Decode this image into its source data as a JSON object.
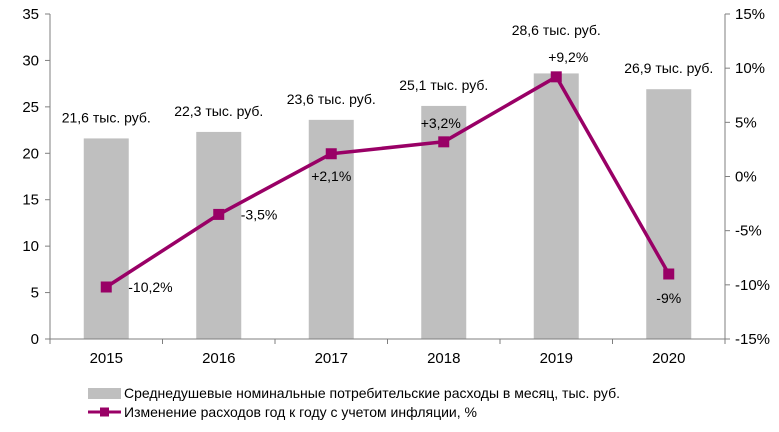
{
  "chart_data": {
    "type": "bar+line",
    "categories": [
      "2015",
      "2016",
      "2017",
      "2018",
      "2019",
      "2020"
    ],
    "bar_series": {
      "name": "Среднедушевые номинальные потребительские расходы в месяц, тыс. руб.",
      "values": [
        21.6,
        22.3,
        23.6,
        25.1,
        28.6,
        26.9
      ],
      "labels": [
        "21,6 тыс. руб.",
        "22,3 тыс. руб.",
        "23,6 тыс. руб.",
        "25,1 тыс. руб.",
        "28,6 тыс. руб.",
        "26,9 тыс. руб."
      ],
      "color": "#bfbfbf"
    },
    "line_series": {
      "name": "Изменение расходов год к году с учетом инфляции, %",
      "values": [
        -10.2,
        -3.5,
        2.1,
        3.2,
        9.2,
        -9
      ],
      "labels": [
        "-10,2%",
        "-3,5%",
        "+2,1%",
        "+3,2%",
        "+9,2%",
        "-9%"
      ],
      "color": "#990066"
    },
    "y_left": {
      "min": 0,
      "max": 35,
      "ticks": [
        "0",
        "5",
        "10",
        "15",
        "20",
        "25",
        "30",
        "35"
      ],
      "tick_values": [
        0,
        5,
        10,
        15,
        20,
        25,
        30,
        35
      ]
    },
    "y_right": {
      "min": -15,
      "max": 15,
      "ticks": [
        "-15%",
        "-10%",
        "-5%",
        "0%",
        "5%",
        "10%",
        "15%"
      ],
      "tick_values": [
        -15,
        -10,
        -5,
        0,
        5,
        10,
        15
      ]
    },
    "grid": false,
    "legend_position": "bottom"
  }
}
